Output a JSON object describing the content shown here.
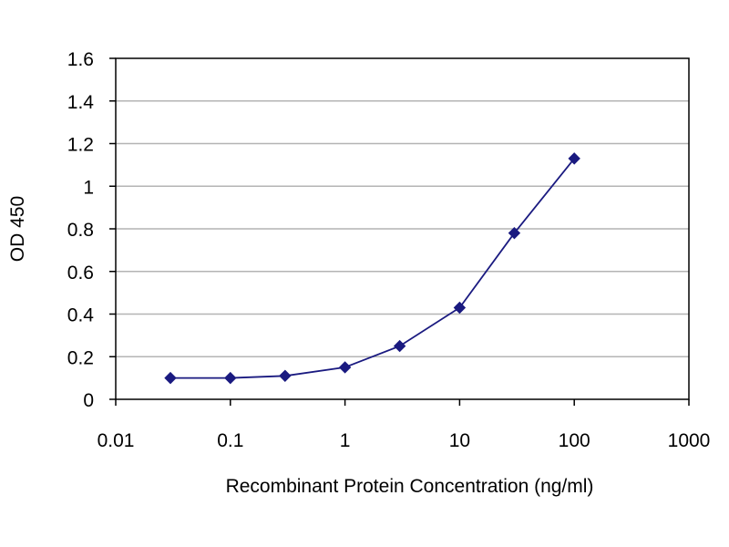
{
  "chart_data": {
    "type": "line",
    "title": "",
    "xlabel": "Recombinant Protein Concentration (ng/ml)",
    "ylabel": "OD 450",
    "x_scale": "log",
    "xlim": [
      0.01,
      1000
    ],
    "ylim": [
      0,
      1.6
    ],
    "x_ticks": [
      "0.01",
      "0.1",
      "1",
      "10",
      "100",
      "1000"
    ],
    "y_ticks": [
      "0",
      "0.2",
      "0.4",
      "0.6",
      "0.8",
      "1",
      "1.2",
      "1.4",
      "1.6"
    ],
    "grid": true,
    "series": [
      {
        "x": [
          0.03,
          0.1,
          0.3,
          1,
          3,
          10,
          30,
          100
        ],
        "y": [
          0.1,
          0.1,
          0.11,
          0.15,
          0.25,
          0.43,
          0.78,
          1.13
        ],
        "color": "#1a1a80"
      }
    ],
    "colors": {
      "gridline": "#b4b4b4",
      "axis": "#000000",
      "series": "#1a1a80"
    }
  }
}
